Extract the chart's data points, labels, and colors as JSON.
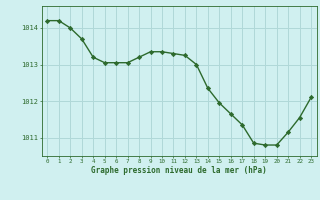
{
  "x": [
    0,
    1,
    2,
    3,
    4,
    5,
    6,
    7,
    8,
    9,
    10,
    11,
    12,
    13,
    14,
    15,
    16,
    17,
    18,
    19,
    20,
    21,
    22,
    23
  ],
  "y": [
    1014.2,
    1014.2,
    1014.0,
    1013.7,
    1013.2,
    1013.05,
    1013.05,
    1013.05,
    1013.2,
    1013.35,
    1013.35,
    1013.3,
    1013.25,
    1013.0,
    1012.35,
    1011.95,
    1011.65,
    1011.35,
    1010.85,
    1010.8,
    1010.8,
    1011.15,
    1011.55,
    1012.1
  ],
  "line_color": "#2d6a2d",
  "marker_color": "#2d6a2d",
  "bg_color": "#d0f0f0",
  "grid_color": "#b0d8d8",
  "xlabel": "Graphe pression niveau de la mer (hPa)",
  "xlabel_color": "#2d6a2d",
  "tick_color": "#2d6a2d",
  "ylim": [
    1010.5,
    1014.6
  ],
  "yticks": [
    1011,
    1012,
    1013,
    1014
  ],
  "xticks": [
    0,
    1,
    2,
    3,
    4,
    5,
    6,
    7,
    8,
    9,
    10,
    11,
    12,
    13,
    14,
    15,
    16,
    17,
    18,
    19,
    20,
    21,
    22,
    23
  ]
}
